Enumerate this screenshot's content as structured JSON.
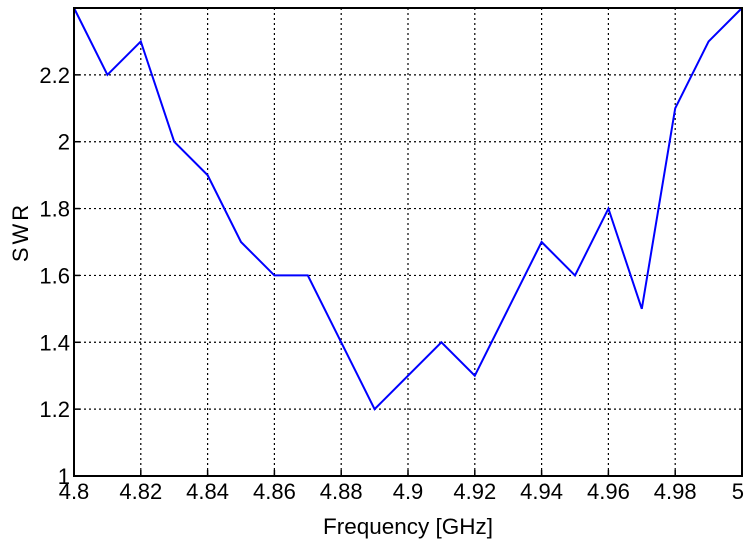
{
  "chart_data": {
    "type": "line",
    "xlabel": "Frequency [GHz]",
    "ylabel": "SWR",
    "xlim": [
      4.8,
      5.0
    ],
    "ylim": [
      1.0,
      2.4
    ],
    "xticks": [
      4.8,
      4.82,
      4.84,
      4.86,
      4.88,
      4.9,
      4.92,
      4.94,
      4.96,
      4.98,
      5.0
    ],
    "xtick_labels": [
      "4.8",
      "4.82",
      "4.84",
      "4.86",
      "4.88",
      "4.9",
      "4.92",
      "4.94",
      "4.96",
      "4.98",
      "5"
    ],
    "yticks": [
      1.0,
      1.2,
      1.4,
      1.6,
      1.8,
      2.0,
      2.2
    ],
    "ytick_labels": [
      "1",
      "1.2",
      "1.4",
      "1.6",
      "1.8",
      "2",
      "2.2"
    ],
    "grid": true,
    "series": [
      {
        "color": "#0000ff",
        "x": [
          4.8,
          4.81,
          4.82,
          4.83,
          4.84,
          4.85,
          4.86,
          4.87,
          4.88,
          4.89,
          4.9,
          4.91,
          4.92,
          4.93,
          4.94,
          4.95,
          4.96,
          4.97,
          4.98,
          4.99,
          5.0
        ],
        "y": [
          2.4,
          2.2,
          2.3,
          2.0,
          1.9,
          1.7,
          1.6,
          1.6,
          1.4,
          1.2,
          1.3,
          1.4,
          1.3,
          1.5,
          1.7,
          1.6,
          1.8,
          1.5,
          2.1,
          2.3,
          2.4
        ]
      }
    ]
  }
}
